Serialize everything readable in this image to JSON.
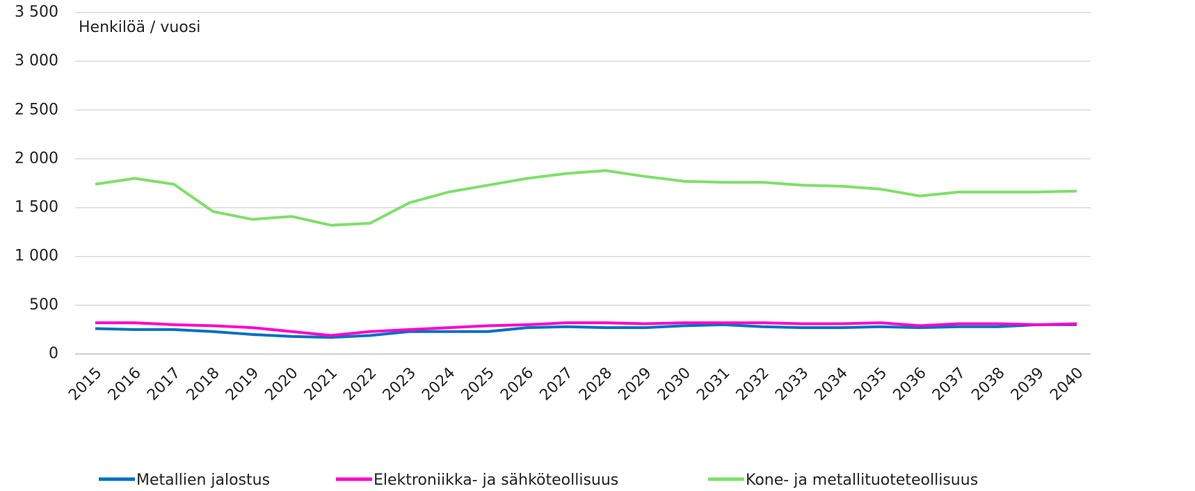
{
  "chart_data": {
    "type": "line",
    "y_label": "Henkilöä / vuosi",
    "x": [
      "2015",
      "2016",
      "2017",
      "2018",
      "2019",
      "2020",
      "2021",
      "2022",
      "2023",
      "2024",
      "2025",
      "2026",
      "2027",
      "2028",
      "2029",
      "2030",
      "2031",
      "2032",
      "2033",
      "2034",
      "2035",
      "2036",
      "2037",
      "2038",
      "2039",
      "2040"
    ],
    "series": [
      {
        "name": "Metallien jalostus",
        "color": "#0070c0",
        "values": [
          260,
          250,
          250,
          230,
          200,
          180,
          170,
          190,
          230,
          230,
          230,
          270,
          280,
          270,
          270,
          290,
          300,
          280,
          270,
          270,
          280,
          270,
          280,
          280,
          300,
          300
        ]
      },
      {
        "name": "Elektroniikka- ja sähköteollisuus",
        "color": "#ff00cc",
        "values": [
          320,
          320,
          300,
          290,
          270,
          230,
          190,
          230,
          250,
          270,
          290,
          300,
          320,
          320,
          310,
          320,
          320,
          320,
          310,
          310,
          320,
          290,
          310,
          310,
          300,
          310
        ]
      },
      {
        "name": "Kone- ja metallituoteteollisuus",
        "color": "#7ee06a",
        "values": [
          1740,
          1800,
          1740,
          1460,
          1380,
          1410,
          1320,
          1340,
          1550,
          1660,
          1730,
          1800,
          1850,
          1880,
          1820,
          1770,
          1760,
          1760,
          1730,
          1720,
          1690,
          1620,
          1660,
          1660,
          1660,
          1670
        ]
      }
    ],
    "ylim": [
      0,
      3500
    ],
    "yticks": [
      0,
      500,
      {
        "value": 1000,
        "label": "1 000"
      },
      {
        "value": 1500,
        "label": "1 500"
      },
      {
        "value": 2000,
        "label": "2 000"
      },
      {
        "value": 2500,
        "label": "2 500"
      },
      {
        "value": 3000,
        "label": "3 000"
      },
      {
        "value": 3500,
        "label": "3 500"
      }
    ],
    "grid": true,
    "legend": "bottom"
  }
}
